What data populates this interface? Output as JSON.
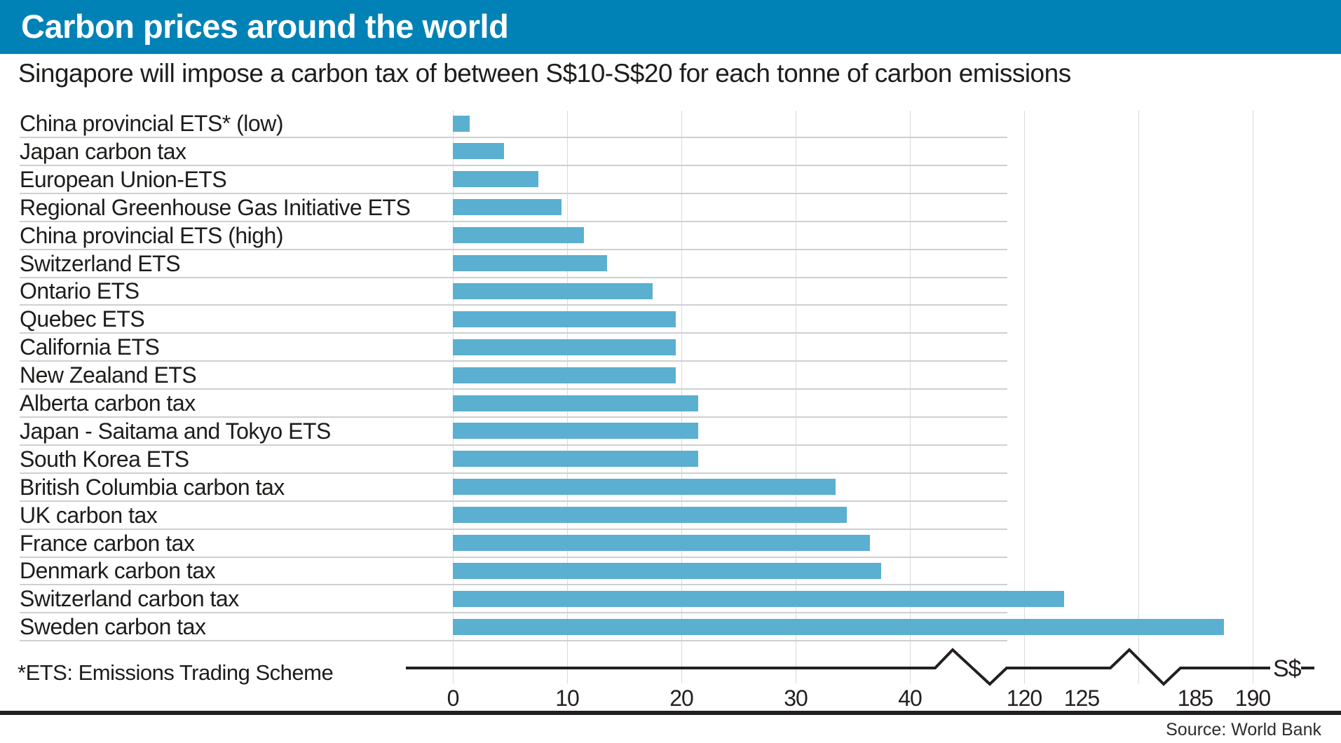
{
  "header": {
    "title": "Carbon prices around the world",
    "bar_color": "#0082B6"
  },
  "subtitle": "Singapore will impose a carbon tax of between S$10-S$20 for each tonne of carbon emissions",
  "footnote": "*ETS: Emissions Trading Scheme",
  "source": "Source: World Bank",
  "axis": {
    "unit_label": "S$",
    "ticks": [
      {
        "label": "0",
        "value": 0
      },
      {
        "label": "10",
        "value": 10
      },
      {
        "label": "20",
        "value": 20
      },
      {
        "label": "30",
        "value": 30
      },
      {
        "label": "40",
        "value": 40
      },
      {
        "label": "120",
        "value": 120
      },
      {
        "label": "125",
        "value": 125
      },
      {
        "label": "185",
        "value": 185
      },
      {
        "label": "190",
        "value": 190
      }
    ]
  },
  "chart_data": {
    "type": "bar",
    "orientation": "horizontal",
    "title": "Carbon prices around the world",
    "xlabel": "S$",
    "ylabel": "",
    "unit": "S$ per tonne of carbon emissions",
    "grid": true,
    "axis_breaks": [
      [
        42,
        118
      ],
      [
        127,
        183
      ]
    ],
    "x_ticks": [
      0,
      10,
      20,
      30,
      40,
      120,
      125,
      185,
      190
    ],
    "bar_color": "#5BAFD0",
    "categories": [
      "China provincial ETS* (low)",
      "Japan carbon tax",
      "European Union-ETS",
      "Regional Greenhouse Gas Initiative ETS",
      "China provincial ETS (high)",
      "Switzerland ETS",
      "Ontario ETS",
      "Quebec ETS",
      "California ETS",
      "New Zealand ETS",
      "Alberta carbon tax",
      "Japan - Saitama and Tokyo ETS",
      "South Korea ETS",
      "British Columbia carbon tax",
      "UK carbon tax",
      "France carbon tax",
      "Denmark carbon tax",
      "Switzerland carbon tax",
      "Sweden carbon tax"
    ],
    "values": [
      1.5,
      4.5,
      7.5,
      9.5,
      11.5,
      13.5,
      17.5,
      19.5,
      19.5,
      19.5,
      21.5,
      21.5,
      21.5,
      33.5,
      34.5,
      36.5,
      37.5,
      123.5,
      187.5
    ]
  }
}
